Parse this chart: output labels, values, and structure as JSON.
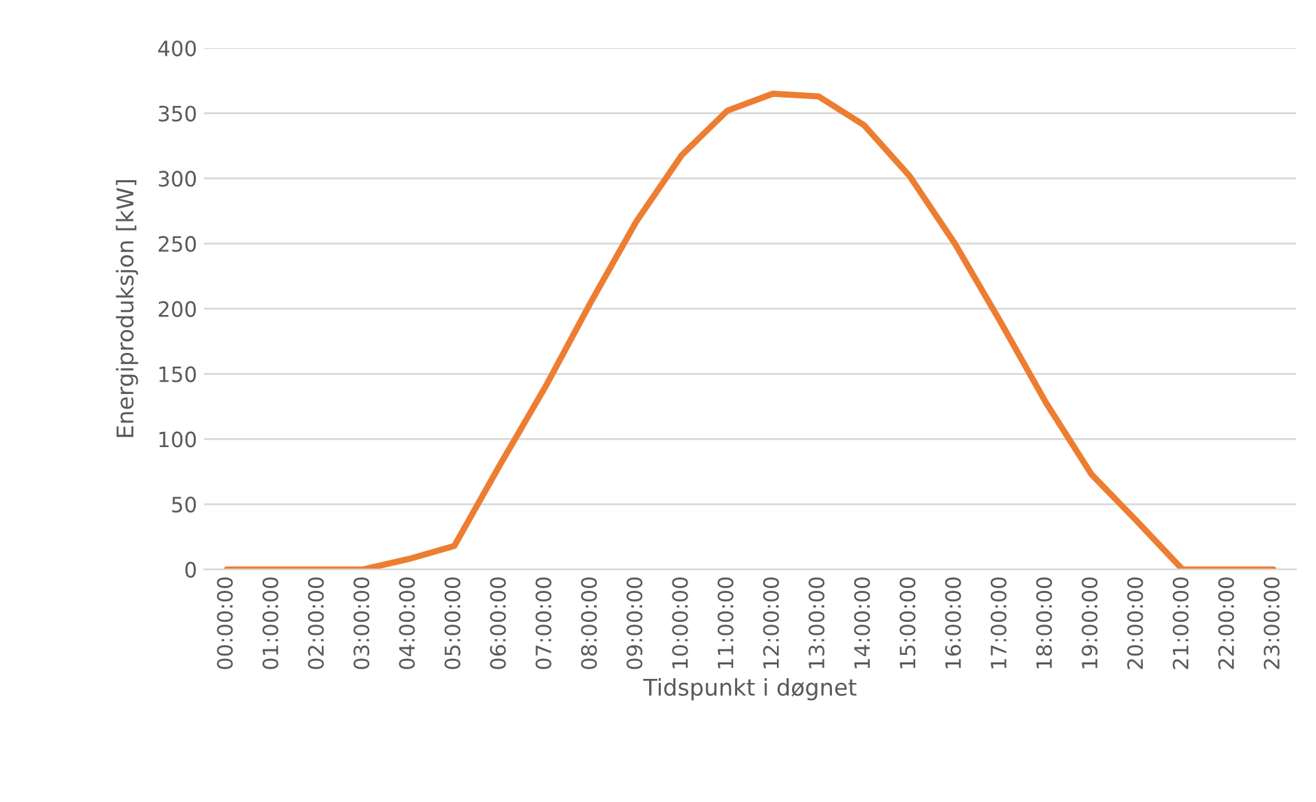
{
  "chart_data": {
    "type": "line",
    "xlabel": "Tidspunkt i døgnet",
    "ylabel": "Energiproduksjon [kW]",
    "categories": [
      "00:00:00",
      "01:00:00",
      "02:00:00",
      "03:00:00",
      "04:00:00",
      "05:00:00",
      "06:00:00",
      "07:00:00",
      "08:00:00",
      "09:00:00",
      "10:00:00",
      "11:00:00",
      "12:00:00",
      "13:00:00",
      "14:00:00",
      "15:00:00",
      "16:00:00",
      "17:00:00",
      "18:00:00",
      "19:00:00",
      "20:00:00",
      "21:00:00",
      "22:00:00",
      "23:00:00"
    ],
    "series": [
      {
        "color": "#ed7d31",
        "values": [
          0,
          0,
          0,
          0,
          8,
          18,
          80,
          140,
          205,
          267,
          318,
          352,
          365,
          363,
          341,
          302,
          250,
          190,
          128,
          73,
          37,
          0,
          0,
          0
        ]
      }
    ],
    "ylim": [
      0,
      400
    ],
    "yticks": [
      0,
      50,
      100,
      150,
      200,
      250,
      300,
      350,
      400
    ],
    "grid": "y",
    "marker": "none",
    "line_style": "solid"
  }
}
